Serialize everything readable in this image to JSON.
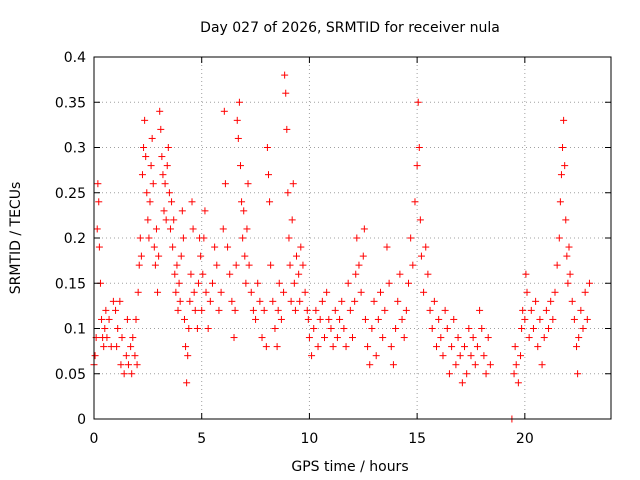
{
  "chart_data": {
    "type": "scatter",
    "title": "Day 027 of 2026, SRMTID for receiver nula",
    "xlabel": "GPS time / hours",
    "ylabel": "SRMTID / TECUs",
    "xlim": [
      0,
      24
    ],
    "ylim": [
      0,
      0.4
    ],
    "xticks": [
      0,
      5,
      10,
      15,
      20
    ],
    "yticks": [
      0,
      0.05,
      0.1,
      0.15,
      0.2,
      0.25,
      0.3,
      0.35,
      0.4
    ],
    "xtick_labels": [
      "0",
      "5",
      "10",
      "15",
      "20"
    ],
    "ytick_labels": [
      "0",
      "0.05",
      "0.1",
      "0.15",
      "0.2",
      "0.25",
      "0.3",
      "0.35",
      "0.4"
    ],
    "grid": true,
    "marker": "+",
    "color": "#ff0000",
    "series": [
      {
        "name": "SRMTID",
        "points": [
          [
            0.0,
            0.06
          ],
          [
            0.05,
            0.07
          ],
          [
            0.1,
            0.09
          ],
          [
            0.15,
            0.21
          ],
          [
            0.18,
            0.26
          ],
          [
            0.22,
            0.24
          ],
          [
            0.25,
            0.19
          ],
          [
            0.3,
            0.15
          ],
          [
            0.35,
            0.11
          ],
          [
            0.4,
            0.09
          ],
          [
            0.45,
            0.08
          ],
          [
            0.5,
            0.1
          ],
          [
            0.55,
            0.12
          ],
          [
            0.6,
            0.09
          ],
          [
            0.7,
            0.11
          ],
          [
            0.8,
            0.08
          ],
          [
            0.9,
            0.13
          ],
          [
            1.0,
            0.12
          ],
          [
            1.05,
            0.08
          ],
          [
            1.1,
            0.1
          ],
          [
            1.2,
            0.13
          ],
          [
            1.25,
            0.06
          ],
          [
            1.3,
            0.09
          ],
          [
            1.4,
            0.05
          ],
          [
            1.5,
            0.07
          ],
          [
            1.55,
            0.11
          ],
          [
            1.6,
            0.06
          ],
          [
            1.7,
            0.08
          ],
          [
            1.75,
            0.05
          ],
          [
            1.8,
            0.09
          ],
          [
            1.9,
            0.07
          ],
          [
            1.95,
            0.11
          ],
          [
            2.0,
            0.06
          ],
          [
            2.05,
            0.14
          ],
          [
            2.1,
            0.17
          ],
          [
            2.15,
            0.2
          ],
          [
            2.2,
            0.18
          ],
          [
            2.25,
            0.27
          ],
          [
            2.3,
            0.3
          ],
          [
            2.35,
            0.33
          ],
          [
            2.4,
            0.29
          ],
          [
            2.45,
            0.25
          ],
          [
            2.5,
            0.22
          ],
          [
            2.55,
            0.2
          ],
          [
            2.6,
            0.24
          ],
          [
            2.65,
            0.28
          ],
          [
            2.7,
            0.31
          ],
          [
            2.75,
            0.26
          ],
          [
            2.8,
            0.19
          ],
          [
            2.85,
            0.17
          ],
          [
            2.9,
            0.21
          ],
          [
            2.95,
            0.14
          ],
          [
            3.0,
            0.18
          ],
          [
            3.05,
            0.34
          ],
          [
            3.1,
            0.32
          ],
          [
            3.15,
            0.29
          ],
          [
            3.2,
            0.27
          ],
          [
            3.25,
            0.23
          ],
          [
            3.3,
            0.26
          ],
          [
            3.35,
            0.22
          ],
          [
            3.4,
            0.28
          ],
          [
            3.45,
            0.3
          ],
          [
            3.5,
            0.25
          ],
          [
            3.55,
            0.21
          ],
          [
            3.6,
            0.24
          ],
          [
            3.65,
            0.19
          ],
          [
            3.7,
            0.22
          ],
          [
            3.75,
            0.16
          ],
          [
            3.8,
            0.14
          ],
          [
            3.85,
            0.17
          ],
          [
            3.9,
            0.12
          ],
          [
            3.95,
            0.15
          ],
          [
            4.0,
            0.13
          ],
          [
            4.05,
            0.18
          ],
          [
            4.1,
            0.23
          ],
          [
            4.15,
            0.2
          ],
          [
            4.2,
            0.11
          ],
          [
            4.25,
            0.08
          ],
          [
            4.3,
            0.04
          ],
          [
            4.35,
            0.07
          ],
          [
            4.4,
            0.1
          ],
          [
            4.45,
            0.13
          ],
          [
            4.5,
            0.16
          ],
          [
            4.55,
            0.24
          ],
          [
            4.6,
            0.21
          ],
          [
            4.65,
            0.14
          ],
          [
            4.7,
            0.12
          ],
          [
            4.8,
            0.1
          ],
          [
            4.85,
            0.15
          ],
          [
            4.9,
            0.2
          ],
          [
            4.95,
            0.18
          ],
          [
            5.0,
            0.12
          ],
          [
            5.05,
            0.16
          ],
          [
            5.1,
            0.2
          ],
          [
            5.15,
            0.23
          ],
          [
            5.2,
            0.14
          ],
          [
            5.3,
            0.1
          ],
          [
            5.4,
            0.13
          ],
          [
            5.5,
            0.15
          ],
          [
            5.6,
            0.19
          ],
          [
            5.7,
            0.17
          ],
          [
            5.8,
            0.12
          ],
          [
            5.9,
            0.14
          ],
          [
            6.0,
            0.21
          ],
          [
            6.05,
            0.34
          ],
          [
            6.1,
            0.26
          ],
          [
            6.2,
            0.19
          ],
          [
            6.3,
            0.16
          ],
          [
            6.4,
            0.13
          ],
          [
            6.5,
            0.09
          ],
          [
            6.55,
            0.12
          ],
          [
            6.6,
            0.17
          ],
          [
            6.65,
            0.33
          ],
          [
            6.7,
            0.31
          ],
          [
            6.75,
            0.35
          ],
          [
            6.8,
            0.28
          ],
          [
            6.85,
            0.24
          ],
          [
            6.9,
            0.2
          ],
          [
            6.95,
            0.23
          ],
          [
            7.0,
            0.18
          ],
          [
            7.05,
            0.15
          ],
          [
            7.1,
            0.21
          ],
          [
            7.15,
            0.26
          ],
          [
            7.2,
            0.17
          ],
          [
            7.3,
            0.14
          ],
          [
            7.4,
            0.12
          ],
          [
            7.5,
            0.11
          ],
          [
            7.6,
            0.15
          ],
          [
            7.7,
            0.13
          ],
          [
            7.8,
            0.09
          ],
          [
            7.9,
            0.12
          ],
          [
            8.0,
            0.08
          ],
          [
            8.05,
            0.3
          ],
          [
            8.1,
            0.27
          ],
          [
            8.15,
            0.24
          ],
          [
            8.2,
            0.17
          ],
          [
            8.3,
            0.13
          ],
          [
            8.4,
            0.1
          ],
          [
            8.5,
            0.08
          ],
          [
            8.55,
            0.12
          ],
          [
            8.6,
            0.15
          ],
          [
            8.7,
            0.11
          ],
          [
            8.8,
            0.14
          ],
          [
            8.85,
            0.38
          ],
          [
            8.9,
            0.36
          ],
          [
            8.95,
            0.32
          ],
          [
            9.0,
            0.25
          ],
          [
            9.05,
            0.2
          ],
          [
            9.1,
            0.17
          ],
          [
            9.15,
            0.13
          ],
          [
            9.2,
            0.22
          ],
          [
            9.25,
            0.26
          ],
          [
            9.3,
            0.15
          ],
          [
            9.35,
            0.12
          ],
          [
            9.4,
            0.18
          ],
          [
            9.5,
            0.16
          ],
          [
            9.55,
            0.13
          ],
          [
            9.6,
            0.19
          ],
          [
            9.7,
            0.17
          ],
          [
            9.8,
            0.14
          ],
          [
            9.9,
            0.12
          ],
          [
            9.95,
            0.11
          ],
          [
            10.0,
            0.09
          ],
          [
            10.1,
            0.07
          ],
          [
            10.2,
            0.1
          ],
          [
            10.3,
            0.12
          ],
          [
            10.4,
            0.08
          ],
          [
            10.5,
            0.11
          ],
          [
            10.6,
            0.13
          ],
          [
            10.7,
            0.09
          ],
          [
            10.8,
            0.14
          ],
          [
            10.9,
            0.11
          ],
          [
            11.0,
            0.1
          ],
          [
            11.1,
            0.08
          ],
          [
            11.2,
            0.12
          ],
          [
            11.3,
            0.09
          ],
          [
            11.4,
            0.11
          ],
          [
            11.5,
            0.13
          ],
          [
            11.6,
            0.1
          ],
          [
            11.7,
            0.08
          ],
          [
            11.8,
            0.15
          ],
          [
            11.9,
            0.12
          ],
          [
            12.0,
            0.09
          ],
          [
            12.1,
            0.13
          ],
          [
            12.15,
            0.16
          ],
          [
            12.2,
            0.2
          ],
          [
            12.3,
            0.17
          ],
          [
            12.4,
            0.14
          ],
          [
            12.5,
            0.18
          ],
          [
            12.55,
            0.21
          ],
          [
            12.6,
            0.11
          ],
          [
            12.7,
            0.08
          ],
          [
            12.8,
            0.06
          ],
          [
            12.9,
            0.1
          ],
          [
            13.0,
            0.13
          ],
          [
            13.1,
            0.07
          ],
          [
            13.2,
            0.11
          ],
          [
            13.3,
            0.14
          ],
          [
            13.4,
            0.09
          ],
          [
            13.5,
            0.12
          ],
          [
            13.6,
            0.19
          ],
          [
            13.7,
            0.15
          ],
          [
            13.8,
            0.08
          ],
          [
            13.9,
            0.06
          ],
          [
            14.0,
            0.1
          ],
          [
            14.1,
            0.13
          ],
          [
            14.2,
            0.16
          ],
          [
            14.3,
            0.11
          ],
          [
            14.4,
            0.09
          ],
          [
            14.5,
            0.12
          ],
          [
            14.6,
            0.15
          ],
          [
            14.7,
            0.2
          ],
          [
            14.8,
            0.17
          ],
          [
            14.9,
            0.24
          ],
          [
            15.0,
            0.28
          ],
          [
            15.05,
            0.35
          ],
          [
            15.1,
            0.3
          ],
          [
            15.15,
            0.22
          ],
          [
            15.2,
            0.18
          ],
          [
            15.3,
            0.14
          ],
          [
            15.4,
            0.19
          ],
          [
            15.5,
            0.16
          ],
          [
            15.6,
            0.12
          ],
          [
            15.7,
            0.1
          ],
          [
            15.8,
            0.13
          ],
          [
            15.9,
            0.08
          ],
          [
            16.0,
            0.11
          ],
          [
            16.1,
            0.09
          ],
          [
            16.2,
            0.07
          ],
          [
            16.3,
            0.12
          ],
          [
            16.4,
            0.1
          ],
          [
            16.5,
            0.05
          ],
          [
            16.6,
            0.08
          ],
          [
            16.7,
            0.11
          ],
          [
            16.8,
            0.06
          ],
          [
            16.9,
            0.09
          ],
          [
            17.0,
            0.07
          ],
          [
            17.1,
            0.04
          ],
          [
            17.2,
            0.08
          ],
          [
            17.3,
            0.05
          ],
          [
            17.4,
            0.1
          ],
          [
            17.5,
            0.07
          ],
          [
            17.6,
            0.09
          ],
          [
            17.7,
            0.06
          ],
          [
            17.8,
            0.08
          ],
          [
            17.9,
            0.12
          ],
          [
            18.0,
            0.1
          ],
          [
            18.1,
            0.07
          ],
          [
            18.2,
            0.05
          ],
          [
            18.3,
            0.09
          ],
          [
            18.4,
            0.06
          ],
          [
            19.4,
            0.0
          ],
          [
            19.5,
            0.05
          ],
          [
            19.55,
            0.08
          ],
          [
            19.6,
            0.06
          ],
          [
            19.7,
            0.04
          ],
          [
            19.8,
            0.07
          ],
          [
            19.85,
            0.1
          ],
          [
            19.9,
            0.12
          ],
          [
            20.0,
            0.11
          ],
          [
            20.05,
            0.16
          ],
          [
            20.1,
            0.14
          ],
          [
            20.2,
            0.09
          ],
          [
            20.3,
            0.12
          ],
          [
            20.4,
            0.1
          ],
          [
            20.5,
            0.13
          ],
          [
            20.6,
            0.08
          ],
          [
            20.7,
            0.11
          ],
          [
            20.8,
            0.06
          ],
          [
            20.9,
            0.09
          ],
          [
            21.0,
            0.12
          ],
          [
            21.1,
            0.1
          ],
          [
            21.2,
            0.13
          ],
          [
            21.3,
            0.11
          ],
          [
            21.4,
            0.14
          ],
          [
            21.5,
            0.17
          ],
          [
            21.6,
            0.2
          ],
          [
            21.65,
            0.24
          ],
          [
            21.7,
            0.27
          ],
          [
            21.75,
            0.3
          ],
          [
            21.8,
            0.33
          ],
          [
            21.85,
            0.28
          ],
          [
            21.9,
            0.22
          ],
          [
            21.95,
            0.18
          ],
          [
            22.0,
            0.15
          ],
          [
            22.05,
            0.19
          ],
          [
            22.1,
            0.16
          ],
          [
            22.2,
            0.13
          ],
          [
            22.3,
            0.11
          ],
          [
            22.4,
            0.08
          ],
          [
            22.45,
            0.05
          ],
          [
            22.5,
            0.09
          ],
          [
            22.6,
            0.12
          ],
          [
            22.7,
            0.1
          ],
          [
            22.8,
            0.14
          ],
          [
            22.9,
            0.11
          ],
          [
            23.0,
            0.15
          ]
        ]
      }
    ]
  }
}
